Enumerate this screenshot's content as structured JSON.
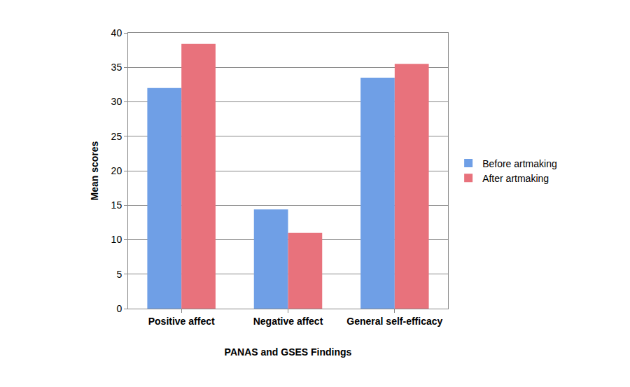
{
  "chart_data": {
    "type": "bar",
    "x_label": "PANAS and GSES Findings",
    "y_label": "Mean scores",
    "categories": [
      "Positive affect",
      "Negative affect",
      "General self-efficacy"
    ],
    "series": [
      {
        "name": "Before artmaking",
        "color": "#6f9fe6",
        "values": [
          32,
          14.4,
          33.5
        ]
      },
      {
        "name": "After artmaking",
        "color": "#e8727c",
        "values": [
          38.4,
          11,
          35.5
        ]
      }
    ],
    "ylim": [
      0,
      40
    ],
    "yticks": [
      0,
      5,
      10,
      15,
      20,
      25,
      30,
      35,
      40
    ],
    "grid": true,
    "legend": "right"
  }
}
